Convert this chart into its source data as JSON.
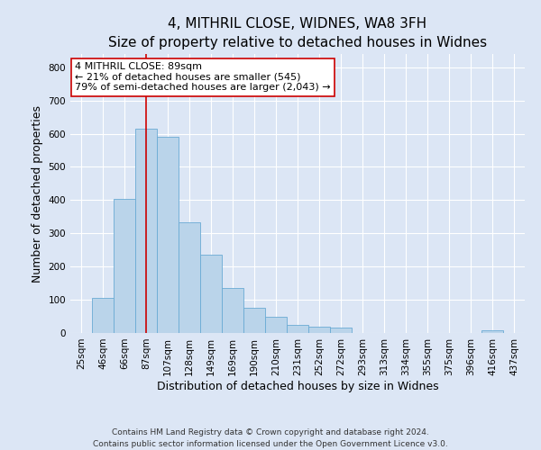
{
  "title": "4, MITHRIL CLOSE, WIDNES, WA8 3FH",
  "subtitle": "Size of property relative to detached houses in Widnes",
  "xlabel": "Distribution of detached houses by size in Widnes",
  "ylabel": "Number of detached properties",
  "bar_labels": [
    "25sqm",
    "46sqm",
    "66sqm",
    "87sqm",
    "107sqm",
    "128sqm",
    "149sqm",
    "169sqm",
    "190sqm",
    "210sqm",
    "231sqm",
    "252sqm",
    "272sqm",
    "293sqm",
    "313sqm",
    "334sqm",
    "355sqm",
    "375sqm",
    "396sqm",
    "416sqm",
    "437sqm"
  ],
  "bar_values": [
    0,
    105,
    405,
    615,
    590,
    333,
    237,
    135,
    76,
    50,
    25,
    18,
    17,
    0,
    0,
    0,
    0,
    0,
    0,
    8,
    0
  ],
  "bar_color": "#bad4ea",
  "bar_edge_color": "#6aaad4",
  "ylim": [
    0,
    840
  ],
  "vline_x_idx": 3,
  "vline_color": "#cc0000",
  "annotation_title": "4 MITHRIL CLOSE: 89sqm",
  "annotation_line1": "← 21% of detached houses are smaller (545)",
  "annotation_line2": "79% of semi-detached houses are larger (2,043) →",
  "annotation_box_facecolor": "#ffffff",
  "annotation_box_edgecolor": "#cc0000",
  "footer1": "Contains HM Land Registry data © Crown copyright and database right 2024.",
  "footer2": "Contains public sector information licensed under the Open Government Licence v3.0.",
  "background_color": "#dce6f5",
  "plot_background": "#dce6f5",
  "title_fontsize": 11,
  "subtitle_fontsize": 9.5,
  "axis_label_fontsize": 9,
  "tick_fontsize": 7.5,
  "annotation_fontsize": 8,
  "footer_fontsize": 6.5,
  "yticks": [
    0,
    100,
    200,
    300,
    400,
    500,
    600,
    700,
    800
  ]
}
